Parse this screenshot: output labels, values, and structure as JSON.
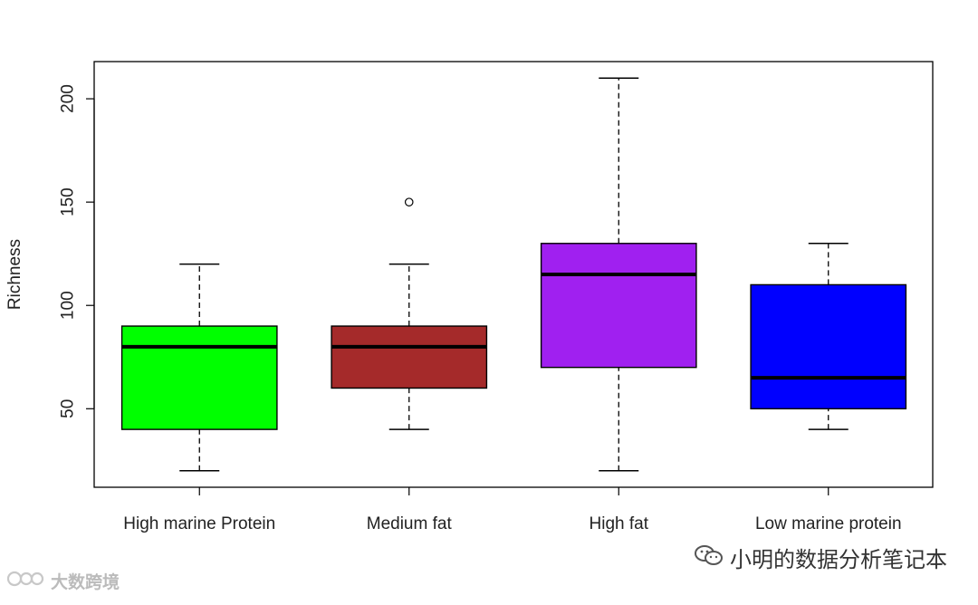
{
  "chart_data": {
    "type": "boxplot",
    "ylabel": "Richness",
    "xlabel": "",
    "title": "",
    "ylim": [
      12,
      218
    ],
    "yticks": [
      50,
      100,
      150,
      200
    ],
    "grid": false,
    "categories": [
      "High marine Protein",
      "Medium fat",
      "High fat",
      "Low marine protein"
    ],
    "boxes": [
      {
        "category": "High marine Protein",
        "min": 20,
        "q1": 40,
        "median": 80,
        "q3": 90,
        "max": 120,
        "outliers": [],
        "color": "#00ff00"
      },
      {
        "category": "Medium fat",
        "min": 40,
        "q1": 60,
        "median": 80,
        "q3": 90,
        "max": 120,
        "outliers": [
          150
        ],
        "color": "#a52a2a"
      },
      {
        "category": "High fat",
        "min": 20,
        "q1": 70,
        "median": 115,
        "q3": 130,
        "max": 210,
        "outliers": [],
        "color": "#a020f0"
      },
      {
        "category": "Low marine protein",
        "min": 40,
        "q1": 50,
        "median": 65,
        "q3": 110,
        "max": 130,
        "outliers": [],
        "color": "#0000ff"
      }
    ]
  },
  "watermarks": {
    "right_text": "小明的数据分析笔记本",
    "left_text": "大数跨境",
    "right_icon": "wechat-icon",
    "left_icon": "logo-icon"
  }
}
